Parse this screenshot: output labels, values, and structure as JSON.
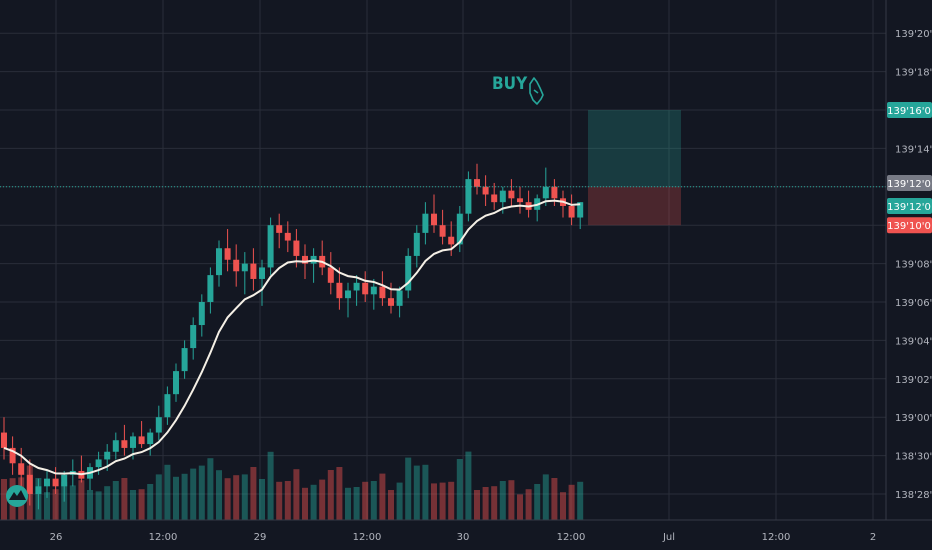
{
  "chart_data": {
    "type": "candlestick",
    "colors": {
      "background": "#131722",
      "grid": "#2a2e39",
      "up": "#26a69a",
      "down": "#ef5350",
      "vwap": "#f5f0e6",
      "price_line": "#26a69a",
      "text": "#b2b5be"
    },
    "y_axis": {
      "ticks": [
        "138'28'0",
        "138'30'0",
        "139'00'0",
        "139'02'0",
        "139'04'0",
        "139'06'0",
        "139'08'0",
        "139'10'0",
        "139'12'0",
        "139'14'0",
        "139'16'0",
        "139'18'0",
        "139'20'0"
      ],
      "range_ticks": [
        -0.5,
        12.9
      ]
    },
    "x_axis": {
      "ticks": [
        "26",
        "12:00",
        "29",
        "12:00",
        "30",
        "12:00",
        "Jul",
        "12:00",
        "2"
      ]
    },
    "price_badges": [
      {
        "label": "139'16'0",
        "level": 10,
        "color": "#26a69a"
      },
      {
        "label": "139'12'0",
        "level": 8.1,
        "color": "#787b86"
      },
      {
        "label": "139'12'0",
        "level": 7.5,
        "color": "#26a69a"
      },
      {
        "label": "139'10'0",
        "level": 7,
        "color": "#ef5350"
      }
    ],
    "last_price_level": 8,
    "position_tool": {
      "entry_level": 8,
      "target_level": 10,
      "stop_level": 7,
      "profit_color": "#26a69a",
      "loss_color": "#ef5350"
    },
    "annotation": {
      "text": "BUY",
      "color": "#26a69a"
    },
    "candles_ohlc_ticks": [
      [
        1.6,
        2.0,
        0.9,
        1.2
      ],
      [
        1.2,
        1.5,
        0.5,
        0.8
      ],
      [
        0.8,
        1.2,
        0.2,
        0.5
      ],
      [
        0.5,
        0.9,
        -0.3,
        0.0
      ],
      [
        0.0,
        0.4,
        -0.4,
        0.2
      ],
      [
        0.2,
        0.6,
        -0.1,
        0.4
      ],
      [
        0.4,
        0.7,
        0.0,
        0.2
      ],
      [
        0.2,
        0.6,
        -0.2,
        0.5
      ],
      [
        0.5,
        0.9,
        0.2,
        0.6
      ],
      [
        0.6,
        1.0,
        0.3,
        0.4
      ],
      [
        0.4,
        0.8,
        0.1,
        0.7
      ],
      [
        0.7,
        1.1,
        0.5,
        0.9
      ],
      [
        0.9,
        1.3,
        0.6,
        1.1
      ],
      [
        1.1,
        1.6,
        0.9,
        1.4
      ],
      [
        1.4,
        1.8,
        1.0,
        1.2
      ],
      [
        1.2,
        1.6,
        0.9,
        1.5
      ],
      [
        1.5,
        1.9,
        1.2,
        1.3
      ],
      [
        1.3,
        1.7,
        1.0,
        1.6
      ],
      [
        1.6,
        2.3,
        1.4,
        2.0
      ],
      [
        2.0,
        2.8,
        1.8,
        2.6
      ],
      [
        2.6,
        3.4,
        2.4,
        3.2
      ],
      [
        3.2,
        4.0,
        3.0,
        3.8
      ],
      [
        3.8,
        4.6,
        3.5,
        4.4
      ],
      [
        4.4,
        5.2,
        4.1,
        5.0
      ],
      [
        5.0,
        5.9,
        4.7,
        5.7
      ],
      [
        5.7,
        6.6,
        5.4,
        6.4
      ],
      [
        6.4,
        6.9,
        5.8,
        6.1
      ],
      [
        6.1,
        6.5,
        5.4,
        5.8
      ],
      [
        5.8,
        6.3,
        5.2,
        6.0
      ],
      [
        6.0,
        6.4,
        5.3,
        5.6
      ],
      [
        5.6,
        6.1,
        4.9,
        5.9
      ],
      [
        5.9,
        7.2,
        5.7,
        7.0
      ],
      [
        7.0,
        7.3,
        6.4,
        6.8
      ],
      [
        6.8,
        7.1,
        6.3,
        6.6
      ],
      [
        6.6,
        6.9,
        5.9,
        6.2
      ],
      [
        6.2,
        6.5,
        5.6,
        6.0
      ],
      [
        6.0,
        6.4,
        5.5,
        6.2
      ],
      [
        6.2,
        6.6,
        5.7,
        5.9
      ],
      [
        5.9,
        6.3,
        5.2,
        5.5
      ],
      [
        5.5,
        5.9,
        4.8,
        5.1
      ],
      [
        5.1,
        5.5,
        4.6,
        5.3
      ],
      [
        5.3,
        5.7,
        4.9,
        5.5
      ],
      [
        5.5,
        5.8,
        5.0,
        5.2
      ],
      [
        5.2,
        5.6,
        4.8,
        5.4
      ],
      [
        5.4,
        5.8,
        4.9,
        5.1
      ],
      [
        5.1,
        5.5,
        4.7,
        4.9
      ],
      [
        4.9,
        5.4,
        4.6,
        5.3
      ],
      [
        5.3,
        6.4,
        5.1,
        6.2
      ],
      [
        6.2,
        7.0,
        5.9,
        6.8
      ],
      [
        6.8,
        7.6,
        6.5,
        7.3
      ],
      [
        7.3,
        7.8,
        6.8,
        7.0
      ],
      [
        7.0,
        7.4,
        6.5,
        6.7
      ],
      [
        6.7,
        7.1,
        6.2,
        6.5
      ],
      [
        6.5,
        7.5,
        6.3,
        7.3
      ],
      [
        7.3,
        8.4,
        7.1,
        8.2
      ],
      [
        8.2,
        8.6,
        7.8,
        8.0
      ],
      [
        8.0,
        8.3,
        7.5,
        7.8
      ],
      [
        7.8,
        8.1,
        7.4,
        7.6
      ],
      [
        7.6,
        8.0,
        7.3,
        7.9
      ],
      [
        7.9,
        8.2,
        7.5,
        7.7
      ],
      [
        7.7,
        8.0,
        7.3,
        7.6
      ],
      [
        7.6,
        7.9,
        7.2,
        7.4
      ],
      [
        7.4,
        7.8,
        7.1,
        7.7
      ],
      [
        7.7,
        8.5,
        7.5,
        8.0
      ],
      [
        8.0,
        8.2,
        7.5,
        7.7
      ],
      [
        7.7,
        7.9,
        7.2,
        7.5
      ],
      [
        7.5,
        7.8,
        7.0,
        7.2
      ],
      [
        7.2,
        7.6,
        6.9,
        7.6
      ]
    ]
  }
}
